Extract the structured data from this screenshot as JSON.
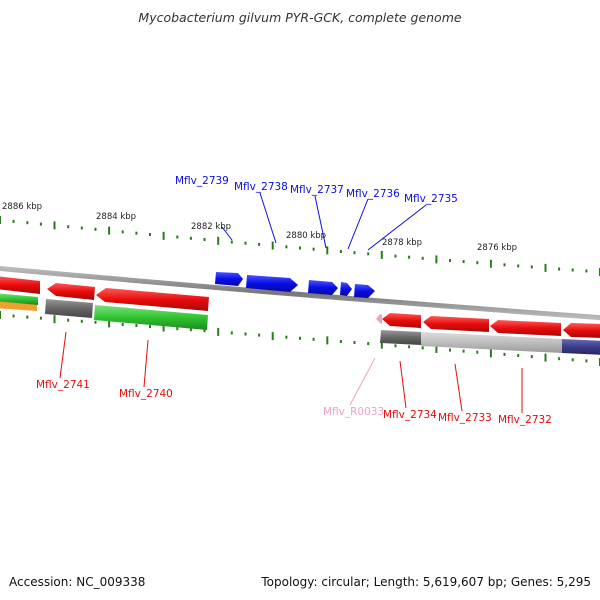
{
  "title": "Mycobacterium gilvum PYR-GCK, complete genome",
  "footer": {
    "accession": "Accession: NC_009338",
    "summary": "Topology: circular; Length: 5,619,607 bp; Genes: 5,295"
  },
  "scale_labels": [
    "2886 kbp",
    "2884 kbp",
    "2882 kbp",
    "2880 kbp",
    "2878 kbp",
    "2876 kbp"
  ],
  "gene_labels": {
    "top": [
      "Mflv_2739",
      "Mflv_2738",
      "Mflv_2737",
      "Mflv_2736",
      "Mflv_2735"
    ],
    "bottom": [
      "Mflv_2741",
      "Mflv_2740",
      "Mflv_R0033",
      "Mflv_2734",
      "Mflv_2733",
      "Mflv_2732"
    ]
  },
  "colors": {
    "forward_gene": "#0a0ee6",
    "reverse_gene": "#e80c0c",
    "rna_gene": "#f0a0c8",
    "backbone": "#888888",
    "tick": "#2b7a1f",
    "track_green": "#2fc42f",
    "track_gray": "#666666",
    "track_lightgray": "#bdbdbd",
    "track_purple": "#3a3a8c",
    "track_orange": "#f0a030"
  }
}
